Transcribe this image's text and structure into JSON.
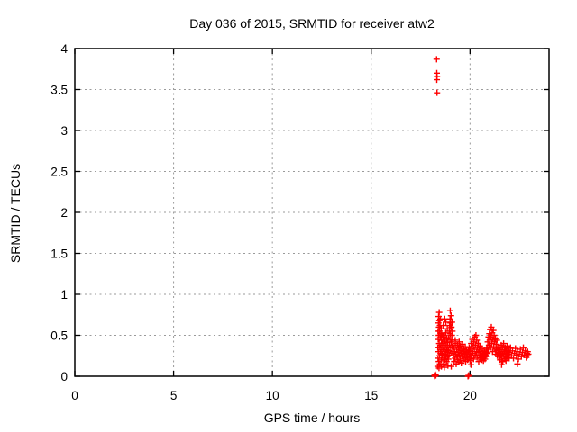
{
  "chart_data": {
    "type": "scatter",
    "title": "Day 036 of 2015, SRMTID for receiver atw2",
    "xlabel": "GPS time / hours",
    "ylabel": "SRMTID / TECUs",
    "xlim": [
      0,
      24
    ],
    "ylim": [
      0,
      4
    ],
    "xticks": [
      0,
      5,
      10,
      15,
      20
    ],
    "xtick_labels": [
      "0",
      "5",
      "10",
      "15",
      "20"
    ],
    "yticks": [
      0,
      0.5,
      1,
      1.5,
      2,
      2.5,
      3,
      3.5,
      4
    ],
    "ytick_labels": [
      "0",
      "0.5",
      "1",
      "1.5",
      "2",
      "2.5",
      "3",
      "3.5",
      "4"
    ],
    "grid": "dotted",
    "legend": "none",
    "marker": "plus",
    "marker_color": "#ff0000",
    "grid_color": "#9a9a9a",
    "border_color": "#000000",
    "series": [
      {
        "name": "SRMTID",
        "points": [
          [
            18.2,
            0.01
          ],
          [
            18.22,
            0.0
          ],
          [
            18.24,
            0.02
          ],
          [
            18.27,
            0.01
          ],
          [
            19.9,
            0.0
          ],
          [
            19.93,
            0.01
          ],
          [
            18.31,
            3.87
          ],
          [
            18.32,
            3.7
          ],
          [
            18.33,
            3.66
          ],
          [
            18.32,
            3.62
          ],
          [
            18.33,
            3.46
          ],
          [
            18.36,
            0.12
          ],
          [
            18.37,
            0.35
          ],
          [
            18.38,
            0.55
          ],
          [
            18.38,
            0.22
          ],
          [
            18.39,
            0.45
          ],
          [
            18.4,
            0.65
          ],
          [
            18.4,
            0.3
          ],
          [
            18.41,
            0.73
          ],
          [
            18.42,
            0.5
          ],
          [
            18.42,
            0.18
          ],
          [
            18.43,
            0.6
          ],
          [
            18.43,
            0.1
          ],
          [
            18.44,
            0.78
          ],
          [
            18.44,
            0.4
          ],
          [
            18.45,
            0.68
          ],
          [
            18.46,
            0.25
          ],
          [
            18.46,
            0.55
          ],
          [
            18.47,
            0.35
          ],
          [
            18.48,
            0.62
          ],
          [
            18.48,
            0.15
          ],
          [
            18.49,
            0.47
          ],
          [
            18.5,
            0.7
          ],
          [
            18.51,
            0.28
          ],
          [
            18.52,
            0.52
          ],
          [
            18.53,
            0.38
          ],
          [
            18.54,
            0.58
          ],
          [
            18.55,
            0.12
          ],
          [
            18.55,
            0.2
          ],
          [
            18.56,
            0.44
          ],
          [
            18.57,
            0.32
          ],
          [
            18.58,
            0.5
          ],
          [
            18.59,
            0.26
          ],
          [
            18.61,
            0.4
          ],
          [
            18.62,
            0.22
          ],
          [
            18.64,
            0.48
          ],
          [
            18.65,
            0.62
          ],
          [
            18.65,
            0.33
          ],
          [
            18.66,
            0.15
          ],
          [
            18.68,
            0.42
          ],
          [
            18.69,
            0.27
          ],
          [
            18.7,
            0.5
          ],
          [
            18.7,
            0.11
          ],
          [
            18.71,
            0.36
          ],
          [
            18.72,
            0.7
          ],
          [
            18.73,
            0.2
          ],
          [
            18.74,
            0.44
          ],
          [
            18.75,
            0.3
          ],
          [
            18.77,
            0.53
          ],
          [
            18.78,
            0.66
          ],
          [
            18.78,
            0.25
          ],
          [
            18.79,
            0.38
          ],
          [
            18.81,
            0.18
          ],
          [
            18.82,
            0.46
          ],
          [
            18.83,
            0.32
          ],
          [
            18.85,
            0.58
          ],
          [
            18.85,
            0.24
          ],
          [
            18.86,
            0.41
          ],
          [
            18.87,
            0.29
          ],
          [
            18.88,
            0.13
          ],
          [
            18.89,
            0.35
          ],
          [
            18.9,
            0.21
          ],
          [
            18.91,
            0.47
          ],
          [
            18.93,
            0.31
          ],
          [
            18.94,
            0.26
          ],
          [
            18.95,
            0.55
          ],
          [
            18.96,
            0.38
          ],
          [
            18.97,
            0.62
          ],
          [
            18.98,
            0.45
          ],
          [
            18.99,
            0.7
          ],
          [
            19.0,
            0.8
          ],
          [
            19.0,
            0.52
          ],
          [
            19.01,
            0.65
          ],
          [
            19.02,
            0.35
          ],
          [
            19.03,
            0.58
          ],
          [
            19.04,
            0.74
          ],
          [
            19.05,
            0.12
          ],
          [
            19.05,
            0.42
          ],
          [
            19.06,
            0.6
          ],
          [
            19.07,
            0.28
          ],
          [
            19.08,
            0.5
          ],
          [
            19.09,
            0.66
          ],
          [
            19.1,
            0.36
          ],
          [
            19.11,
            0.55
          ],
          [
            19.12,
            0.44
          ],
          [
            19.14,
            0.3
          ],
          [
            19.16,
            0.25
          ],
          [
            19.18,
            0.35
          ],
          [
            19.2,
            0.18
          ],
          [
            19.22,
            0.3
          ],
          [
            19.24,
            0.22
          ],
          [
            19.25,
            0.44
          ],
          [
            19.26,
            0.4
          ],
          [
            19.28,
            0.27
          ],
          [
            19.3,
            0.15
          ],
          [
            19.32,
            0.33
          ],
          [
            19.34,
            0.24
          ],
          [
            19.36,
            0.38
          ],
          [
            19.38,
            0.2
          ],
          [
            19.4,
            0.29
          ],
          [
            19.42,
            0.35
          ],
          [
            19.44,
            0.17
          ],
          [
            19.45,
            0.42
          ],
          [
            19.46,
            0.26
          ],
          [
            19.48,
            0.32
          ],
          [
            19.5,
            0.21
          ],
          [
            19.52,
            0.37
          ],
          [
            19.54,
            0.28
          ],
          [
            19.56,
            0.16
          ],
          [
            19.58,
            0.31
          ],
          [
            19.6,
            0.24
          ],
          [
            19.62,
            0.39
          ],
          [
            19.64,
            0.19
          ],
          [
            19.66,
            0.28
          ],
          [
            19.68,
            0.34
          ],
          [
            19.7,
            0.22
          ],
          [
            19.72,
            0.3
          ],
          [
            19.74,
            0.25
          ],
          [
            19.76,
            0.36
          ],
          [
            19.78,
            0.18
          ],
          [
            19.8,
            0.27
          ],
          [
            19.82,
            0.32
          ],
          [
            19.84,
            0.23
          ],
          [
            19.86,
            0.29
          ],
          [
            19.88,
            0.2
          ],
          [
            19.92,
            0.31
          ],
          [
            19.94,
            0.24
          ],
          [
            19.96,
            0.35
          ],
          [
            19.98,
            0.27
          ],
          [
            20.0,
            0.19
          ],
          [
            20.02,
            0.33
          ],
          [
            20.04,
            0.25
          ],
          [
            20.05,
            0.14
          ],
          [
            20.06,
            0.4
          ],
          [
            20.08,
            0.22
          ],
          [
            20.1,
            0.3
          ],
          [
            20.12,
            0.45
          ],
          [
            20.14,
            0.28
          ],
          [
            20.16,
            0.36
          ],
          [
            20.18,
            0.21
          ],
          [
            20.2,
            0.42
          ],
          [
            20.22,
            0.33
          ],
          [
            20.24,
            0.48
          ],
          [
            20.26,
            0.26
          ],
          [
            20.28,
            0.38
          ],
          [
            20.3,
            0.5
          ],
          [
            20.32,
            0.3
          ],
          [
            20.34,
            0.44
          ],
          [
            20.36,
            0.23
          ],
          [
            20.38,
            0.35
          ],
          [
            20.4,
            0.29
          ],
          [
            20.42,
            0.4
          ],
          [
            20.44,
            0.18
          ],
          [
            20.46,
            0.32
          ],
          [
            20.48,
            0.26
          ],
          [
            20.5,
            0.37
          ],
          [
            20.52,
            0.22
          ],
          [
            20.54,
            0.3
          ],
          [
            20.56,
            0.25
          ],
          [
            20.58,
            0.34
          ],
          [
            20.6,
            0.2
          ],
          [
            20.62,
            0.28
          ],
          [
            20.64,
            0.24
          ],
          [
            20.66,
            0.31
          ],
          [
            20.68,
            0.19
          ],
          [
            20.7,
            0.27
          ],
          [
            20.72,
            0.23
          ],
          [
            20.74,
            0.3
          ],
          [
            20.76,
            0.21
          ],
          [
            20.78,
            0.26
          ],
          [
            20.8,
            0.24
          ],
          [
            20.82,
            0.29
          ],
          [
            20.84,
            0.33
          ],
          [
            20.86,
            0.35
          ],
          [
            20.88,
            0.28
          ],
          [
            20.9,
            0.42
          ],
          [
            20.92,
            0.33
          ],
          [
            20.94,
            0.48
          ],
          [
            20.96,
            0.38
          ],
          [
            20.98,
            0.52
          ],
          [
            21.0,
            0.44
          ],
          [
            21.02,
            0.57
          ],
          [
            21.04,
            0.35
          ],
          [
            21.06,
            0.48
          ],
          [
            21.08,
            0.6
          ],
          [
            21.1,
            0.4
          ],
          [
            21.12,
            0.53
          ],
          [
            21.14,
            0.3
          ],
          [
            21.16,
            0.45
          ],
          [
            21.18,
            0.56
          ],
          [
            21.2,
            0.36
          ],
          [
            21.22,
            0.5
          ],
          [
            21.24,
            0.42
          ],
          [
            21.26,
            0.33
          ],
          [
            21.28,
            0.46
          ],
          [
            21.3,
            0.27
          ],
          [
            21.32,
            0.39
          ],
          [
            21.34,
            0.31
          ],
          [
            21.36,
            0.44
          ],
          [
            21.38,
            0.25
          ],
          [
            21.4,
            0.35
          ],
          [
            21.42,
            0.29
          ],
          [
            21.44,
            0.32
          ],
          [
            21.46,
            0.24
          ],
          [
            21.48,
            0.36
          ],
          [
            21.5,
            0.28
          ],
          [
            21.52,
            0.2
          ],
          [
            21.54,
            0.33
          ],
          [
            21.56,
            0.26
          ],
          [
            21.58,
            0.38
          ],
          [
            21.6,
            0.14
          ],
          [
            21.6,
            0.22
          ],
          [
            21.62,
            0.3
          ],
          [
            21.64,
            0.35
          ],
          [
            21.66,
            0.18
          ],
          [
            21.68,
            0.27
          ],
          [
            21.7,
            0.4
          ],
          [
            21.72,
            0.24
          ],
          [
            21.74,
            0.32
          ],
          [
            21.76,
            0.21
          ],
          [
            21.78,
            0.35
          ],
          [
            21.8,
            0.28
          ],
          [
            21.82,
            0.19
          ],
          [
            21.84,
            0.31
          ],
          [
            21.86,
            0.25
          ],
          [
            21.88,
            0.37
          ],
          [
            21.9,
            0.23
          ],
          [
            21.92,
            0.3
          ],
          [
            21.94,
            0.27
          ],
          [
            21.96,
            0.34
          ],
          [
            21.98,
            0.22
          ],
          [
            22.0,
            0.29
          ],
          [
            22.05,
            0.35
          ],
          [
            22.1,
            0.25
          ],
          [
            22.15,
            0.31
          ],
          [
            22.2,
            0.22
          ],
          [
            22.25,
            0.28
          ],
          [
            22.3,
            0.34
          ],
          [
            22.35,
            0.26
          ],
          [
            22.4,
            0.15
          ],
          [
            22.4,
            0.3
          ],
          [
            22.45,
            0.21
          ],
          [
            22.5,
            0.27
          ],
          [
            22.55,
            0.33
          ],
          [
            22.6,
            0.24
          ],
          [
            22.65,
            0.29
          ],
          [
            22.7,
            0.35
          ],
          [
            22.75,
            0.26
          ],
          [
            22.8,
            0.31
          ],
          [
            22.85,
            0.23
          ],
          [
            22.88,
            0.28
          ],
          [
            22.9,
            0.25
          ],
          [
            22.92,
            0.3
          ],
          [
            22.95,
            0.27
          ]
        ]
      }
    ]
  }
}
